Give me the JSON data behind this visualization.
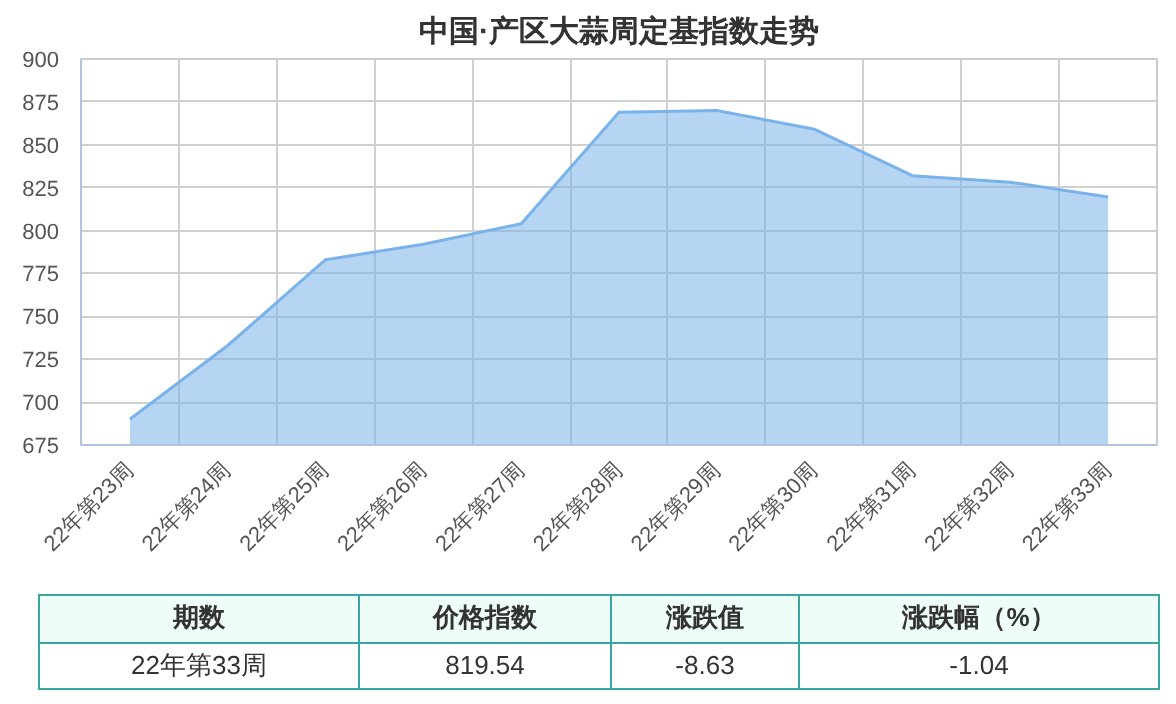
{
  "chart_data": {
    "type": "area",
    "title": "中国·产区大蒜周定基指数走势",
    "categories": [
      "22年第23周",
      "22年第24周",
      "22年第25周",
      "22年第26周",
      "22年第27周",
      "22年第28周",
      "22年第29周",
      "22年第30周",
      "22年第31周",
      "22年第32周",
      "22年第33周"
    ],
    "series": [
      {
        "color": "#7ab2ea",
        "values": [
          690,
          733,
          783,
          792,
          804,
          869,
          870,
          859,
          832,
          828.17,
          819.54
        ]
      }
    ],
    "ylim": [
      675,
      900
    ],
    "yticks": [
      675,
      700,
      725,
      750,
      775,
      800,
      825,
      850,
      875,
      900
    ],
    "grid": true,
    "annotations": [
      "期数",
      "价格指数",
      "涨跌值",
      "涨跌幅（%）",
      "22年第33周",
      "819.54",
      "-8.63",
      "-1.04"
    ]
  }
}
